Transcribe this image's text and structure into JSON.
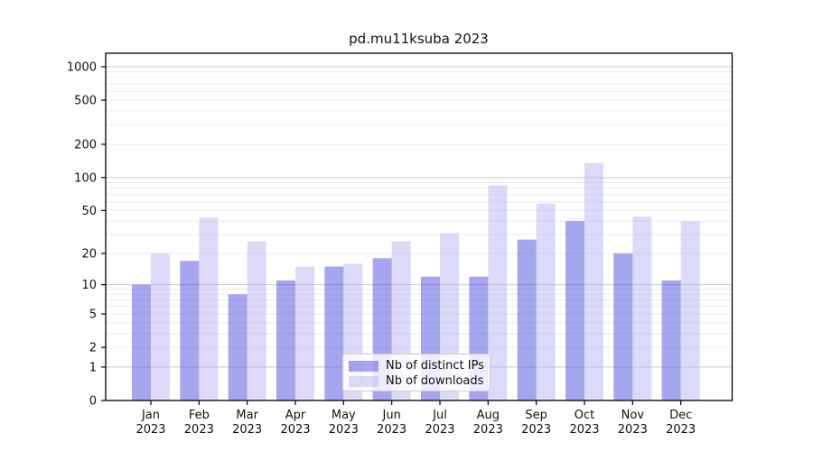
{
  "title": "pd.mu11ksuba 2023",
  "chart_data": {
    "type": "bar",
    "title": "pd.mu11ksuba 2023",
    "categories": [
      "Jan 2023",
      "Feb 2023",
      "Mar 2023",
      "Apr 2023",
      "May 2023",
      "Jun 2023",
      "Jul 2023",
      "Aug 2023",
      "Sep 2023",
      "Oct 2023",
      "Nov 2023",
      "Dec 2023"
    ],
    "series": [
      {
        "name": "Nb of distinct IPs",
        "color": "rgba(75,75,225,0.5)",
        "values": [
          10,
          17,
          8,
          11,
          15,
          18,
          12,
          12,
          27,
          40,
          20,
          11
        ]
      },
      {
        "name": "Nb of downloads",
        "color": "rgba(170,170,240,0.42)",
        "values": [
          20,
          43,
          26,
          15,
          16,
          26,
          31,
          85,
          58,
          135,
          44,
          40
        ]
      }
    ],
    "xlabel": "",
    "ylabel": "",
    "yscale": "log1p",
    "ylim": [
      0,
      1000
    ],
    "y_ticks": [
      0,
      1,
      2,
      5,
      10,
      20,
      50,
      100,
      200,
      500,
      1000
    ],
    "grid": "on",
    "legend_position": "lower center",
    "colors": {
      "bar_distinct_ips": "rgba(75,75,225,0.5)",
      "bar_downloads": "rgba(170,170,240,0.42)",
      "grid_major": "#c9c9c9",
      "grid_minor": "#ececec",
      "axis": "#000000",
      "text": "#111111"
    }
  }
}
